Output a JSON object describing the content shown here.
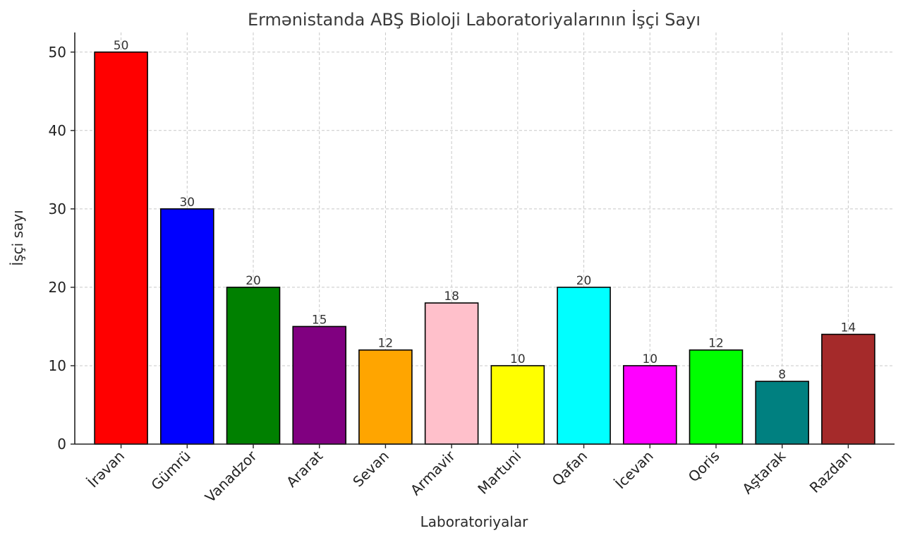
{
  "chart_data": {
    "type": "bar",
    "title": "Ermənistanda ABŞ Bioloji Laboratoriyalarının İşçi Sayı",
    "xlabel": "Laboratoriyalar",
    "ylabel": "İşçi sayı",
    "categories": [
      "İrəvan",
      "Gümrü",
      "Vanadzor",
      "Ararat",
      "Sevan",
      "Armavir",
      "Martuni",
      "Qafan",
      "İcevan",
      "Qoris",
      "Aştarak",
      "Razdan"
    ],
    "values": [
      50,
      30,
      20,
      15,
      12,
      18,
      10,
      20,
      10,
      12,
      8,
      14
    ],
    "colors": [
      "#ff0000",
      "#0000ff",
      "#008000",
      "#800080",
      "#ffa500",
      "#ffc0cb",
      "#ffff00",
      "#00ffff",
      "#ff00ff",
      "#00ff00",
      "#008080",
      "#a52a2a"
    ],
    "ylim": [
      0,
      52.5
    ],
    "yticks": [
      0,
      10,
      20,
      30,
      40,
      50
    ],
    "grid": true,
    "data_labels": true
  }
}
